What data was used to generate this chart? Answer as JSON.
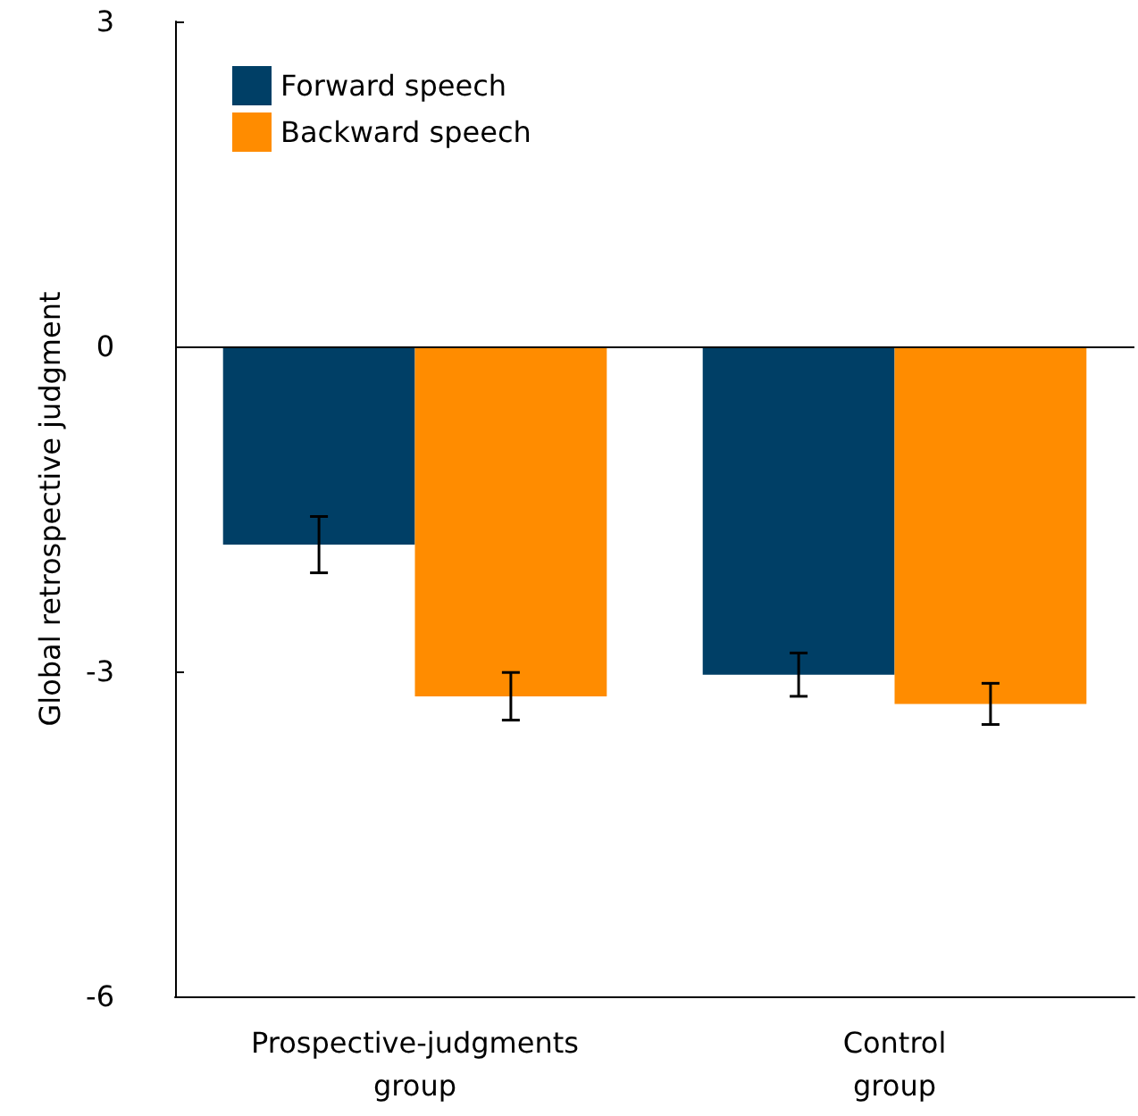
{
  "chart_data": {
    "type": "bar",
    "ylabel": "Global retrospective judgment",
    "categories": [
      "Prospective-judgments\ngroup",
      "Control\ngroup"
    ],
    "series": [
      {
        "name": "Forward speech",
        "color": "#003f66",
        "values": [
          -1.83,
          -3.03
        ],
        "errors": [
          0.26,
          0.2
        ]
      },
      {
        "name": "Backward speech",
        "color": "#ff8c00",
        "values": [
          -3.23,
          -3.3
        ],
        "errors": [
          0.22,
          0.19
        ]
      }
    ],
    "ylim": [
      -6,
      3
    ],
    "yticks": [
      -6,
      -3,
      0,
      3
    ],
    "ref_lines": [
      {
        "axis": "y",
        "value": 0,
        "color": "#000000"
      }
    ],
    "legend": "top left"
  }
}
